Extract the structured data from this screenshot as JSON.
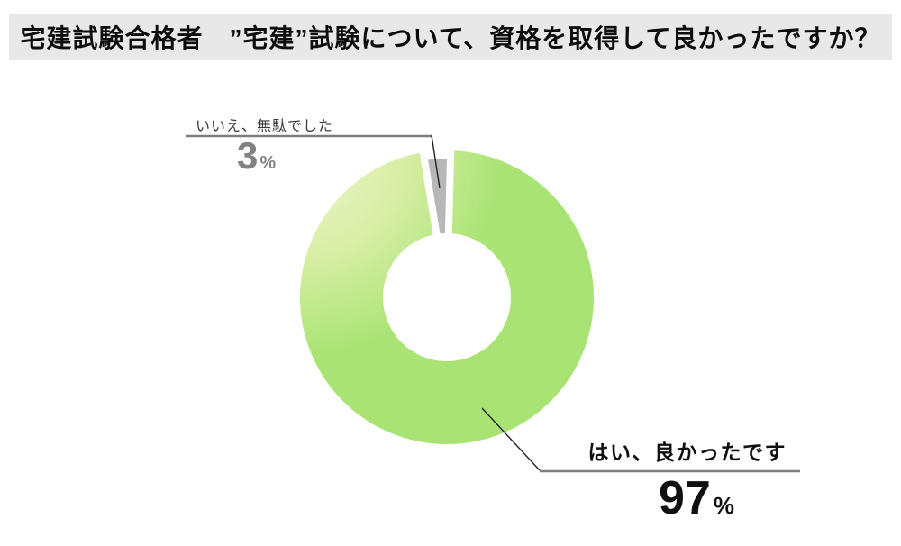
{
  "title": "宅建試験合格者　”宅建”試験について、資格を取得して良かったですか？",
  "chart_data": {
    "type": "pie",
    "subtype": "donut",
    "title": "宅建試験合格者　”宅建”試験について、資格を取得して良かったですか？",
    "categories": [
      "はい、良かったです",
      "いいえ、無駄でした"
    ],
    "values": [
      97,
      3
    ],
    "unit": "%",
    "direction": "clockwise",
    "start": "top",
    "legend": "none, callout labels with leader lines",
    "colors": {
      "yes_gradient": [
        "#f0f6cc",
        "#d9eea6",
        "#abe476",
        "#a9e374"
      ],
      "no": "#b7b7b7",
      "hole": "#ffffff"
    }
  },
  "labels": {
    "no": {
      "text": "いいえ、無駄でした",
      "value": "3",
      "unit": "%"
    },
    "yes": {
      "text": "はい、良かったです",
      "value": "97",
      "unit": "%"
    }
  }
}
